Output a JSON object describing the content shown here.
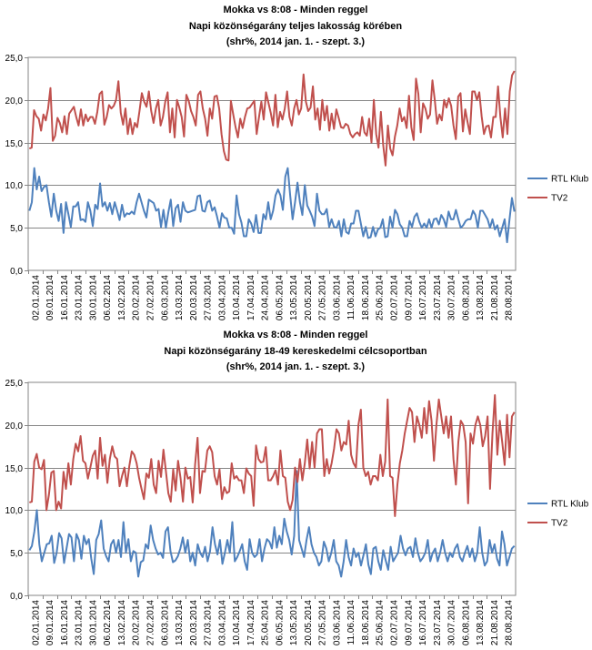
{
  "chart_data": [
    {
      "type": "line",
      "title": [
        "Mokka vs 8:08 - Minden reggel",
        "Napi közönségarány teljes lakosság körében",
        "(shr%, 2014 jan. 1. - szept. 3.)"
      ],
      "ylim": [
        0,
        25
      ],
      "yticks": [
        "0,0",
        "5,0",
        "10,0",
        "15,0",
        "20,0",
        "25,0"
      ],
      "grid": true,
      "legend_position": "right",
      "xticks": [
        "02.01.2014",
        "09.01.2014",
        "16.01.2014",
        "23.01.2014",
        "30.01.2014",
        "06.02.2014",
        "13.02.2014",
        "20.02.2014",
        "27.02.2014",
        "06.03.2014",
        "13.03.2014",
        "20.03.2014",
        "27.03.2014",
        "03.04.2014",
        "10.04.2014",
        "17.04.2014",
        "24.04.2014",
        "06.05.2014",
        "13.05.2014",
        "20.05.2014",
        "27.05.2014",
        "03.06.2014",
        "11.06.2014",
        "18.06.2014",
        "25.06.2014",
        "02.07.2014",
        "09.07.2014",
        "16.07.2014",
        "23.07.2014",
        "30.07.2014",
        "06.08.2014",
        "13.08.2014",
        "21.08.2014",
        "28.08.2014"
      ],
      "series": [
        {
          "name": "RTL Klub",
          "color": "#4f81bd",
          "values": [
            7.0,
            8.0,
            12.0,
            9.5,
            11.0,
            9.3,
            9.8,
            10.0,
            8.0,
            6.3,
            9.0,
            7.0,
            5.8,
            7.8,
            4.4,
            8.0,
            6.6,
            5.1,
            7.5,
            7.5,
            8.0,
            5.9,
            6.0,
            5.7,
            8.0,
            7.0,
            5.2,
            7.7,
            7.2,
            10.2,
            7.5,
            8.0,
            7.0,
            7.9,
            6.6,
            8.0,
            7.0,
            5.9,
            7.7,
            6.3,
            6.7,
            6.6,
            6.9,
            6.6,
            8.0,
            9.0,
            8.0,
            7.0,
            6.2,
            8.3,
            8.1,
            7.9,
            7.0,
            7.2,
            5.1,
            7.1,
            5.0,
            6.8,
            8.3,
            5.2,
            7.3,
            7.7,
            5.7,
            8.0,
            7.0,
            6.8,
            6.9,
            7.0,
            7.1,
            8.7,
            8.8,
            7.0,
            6.9,
            8.0,
            8.2,
            7.0,
            7.4,
            6.3,
            5.0,
            6.7,
            6.2,
            6.1,
            5.0,
            5.0,
            4.3,
            8.8,
            6.6,
            5.6,
            4.0,
            4.0,
            6.0,
            5.5,
            4.5,
            6.5,
            4.4,
            4.4,
            6.6,
            6.0,
            8.0,
            6.0,
            7.0,
            8.8,
            9.5,
            8.8,
            7.1,
            11.0,
            12.0,
            8.8,
            6.0,
            8.0,
            10.3,
            8.0,
            6.5,
            10.0,
            7.6,
            7.0,
            6.3,
            5.2,
            9.0,
            7.0,
            6.6,
            6.6,
            7.2,
            5.1,
            6.0,
            5.1,
            5.0,
            5.8,
            4.0,
            6.0,
            4.5,
            4.3,
            5.5,
            5.5,
            7.0,
            7.0,
            5.5,
            4.0,
            5.1,
            3.8,
            3.9,
            5.1,
            4.0,
            4.8,
            5.0,
            6.0,
            3.9,
            4.0,
            6.3,
            5.0,
            7.1,
            6.6,
            5.4,
            5.0,
            4.0,
            4.0,
            5.8,
            5.1,
            6.3,
            6.7,
            5.7,
            5.0,
            5.5,
            5.0,
            6.0,
            5.0,
            6.0,
            6.1,
            5.4,
            6.5,
            6.0,
            5.1,
            6.9,
            6.0,
            6.0,
            7.1,
            6.0,
            5.0,
            5.3,
            5.8,
            6.0,
            6.0,
            7.0,
            6.5,
            5.0,
            7.0,
            7.0,
            6.5,
            6.0,
            5.0,
            6.0,
            4.8,
            5.3,
            4.0,
            5.0,
            6.0,
            3.3,
            6.0,
            8.5,
            6.9
          ]
        },
        {
          "name": "TV2",
          "color": "#c0504d",
          "values": [
            14.3,
            14.4,
            18.8,
            18.1,
            17.8,
            16.4,
            18.3,
            17.6,
            19.0,
            21.4,
            15.2,
            15.8,
            17.9,
            17.3,
            16.2,
            18.1,
            16.0,
            18.4,
            18.8,
            19.2,
            18.0,
            17.0,
            18.9,
            17.0,
            18.3,
            17.5,
            18.0,
            18.0,
            17.2,
            18.6,
            20.7,
            21.0,
            17.1,
            18.0,
            19.4,
            19.0,
            19.3,
            20.0,
            22.2,
            18.5,
            17.1,
            19.0,
            16.0,
            17.8,
            16.0,
            17.3,
            16.8,
            18.7,
            20.8,
            19.8,
            19.2,
            21.0,
            18.7,
            17.3,
            19.0,
            20.0,
            17.0,
            18.0,
            19.8,
            20.9,
            16.2,
            19.0,
            15.6,
            20.0,
            19.1,
            18.0,
            15.7,
            20.6,
            19.9,
            18.7,
            18.0,
            17.0,
            20.6,
            21.0,
            19.0,
            17.8,
            15.8,
            19.0,
            17.8,
            20.4,
            20.5,
            19.0,
            16.0,
            14.0,
            13.0,
            12.9,
            19.9,
            18.3,
            16.8,
            15.6,
            17.8,
            16.7,
            18.0,
            19.0,
            19.1,
            19.5,
            19.9,
            16.0,
            18.0,
            19.8,
            17.7,
            20.9,
            19.7,
            18.5,
            17.0,
            20.6,
            16.8,
            18.6,
            17.7,
            19.0,
            21.0,
            18.0,
            17.0,
            19.0,
            20.0,
            18.3,
            19.0,
            23.0,
            19.8,
            18.7,
            19.1,
            21.6,
            17.7,
            19.0,
            16.5,
            20.0,
            17.6,
            19.3,
            16.4,
            18.4,
            16.6,
            18.9,
            17.9,
            16.8,
            16.7,
            17.2,
            17.0,
            16.0,
            15.6,
            16.0,
            16.2,
            15.8,
            18.0,
            16.2,
            15.8,
            17.8,
            15.0,
            20.0,
            16.0,
            14.4,
            18.6,
            14.7,
            12.3,
            17.0,
            14.3,
            13.5,
            15.7,
            17.0,
            19.0,
            17.5,
            18.0,
            16.7,
            20.5,
            16.8,
            15.3,
            22.5,
            20.7,
            16.2,
            19.6,
            19.0,
            17.8,
            18.3,
            22.3,
            20.0,
            17.2,
            18.3,
            17.6,
            20.0,
            19.1,
            20.2,
            19.3,
            17.0,
            15.4,
            20.4,
            20.8,
            16.3,
            18.9,
            17.4,
            16.0,
            21.0,
            21.0,
            20.0,
            20.9,
            18.1,
            16.0,
            16.9,
            17.0,
            15.6,
            18.0,
            18.0,
            21.6,
            18.0,
            15.6,
            19.0,
            16.0,
            21.0,
            22.9,
            23.4
          ]
        }
      ]
    },
    {
      "type": "line",
      "title": [
        "Mokka vs 8:08 - Minden reggel",
        "Napi közönségarány 18-49 kereskedelmi célcsoportban",
        "(shr%, 2014 jan. 1. - szept. 3.)"
      ],
      "ylim": [
        0,
        25
      ],
      "yticks": [
        "0,0",
        "5,0",
        "10,0",
        "15,0",
        "20,0",
        "25,0"
      ],
      "grid": true,
      "legend_position": "right",
      "xticks": [
        "02.01.2014",
        "09.01.2014",
        "16.01.2014",
        "23.01.2014",
        "30.01.2014",
        "06.02.2014",
        "13.02.2014",
        "20.02.2014",
        "27.02.2014",
        "06.03.2014",
        "13.03.2014",
        "20.03.2014",
        "27.03.2014",
        "03.04.2014",
        "10.04.2014",
        "17.04.2014",
        "25.04.2014",
        "06.05.2014",
        "13.05.2014",
        "20.05.2014",
        "27.05.2014",
        "03.06.2014",
        "11.06.2014",
        "18.06.2014",
        "25.06.2014",
        "02.07.2014",
        "09.07.2014",
        "16.07.2014",
        "23.07.2014",
        "30.07.2014",
        "06.08.2014",
        "13.08.2014",
        "21.08.2014",
        "28.08.2014"
      ],
      "series": [
        {
          "name": "RTL Klub",
          "color": "#4f81bd",
          "values": [
            5.3,
            5.8,
            7.5,
            10.0,
            6.0,
            4.0,
            5.0,
            6.0,
            6.1,
            7.0,
            3.8,
            5.0,
            7.3,
            6.7,
            3.8,
            5.5,
            7.2,
            6.8,
            4.0,
            7.2,
            6.5,
            4.3,
            7.0,
            6.0,
            6.6,
            4.3,
            2.5,
            6.5,
            7.2,
            8.8,
            5.5,
            4.6,
            4.0,
            6.0,
            6.5,
            5.0,
            6.5,
            4.5,
            8.6,
            5.0,
            6.6,
            4.0,
            5.2,
            5.0,
            2.2,
            3.9,
            4.1,
            6.0,
            5.5,
            8.2,
            6.5,
            5.5,
            4.8,
            5.0,
            4.4,
            7.5,
            8.0,
            5.2,
            3.9,
            4.1,
            4.6,
            5.5,
            6.8,
            5.0,
            6.5,
            4.0,
            5.0,
            3.5,
            6.0,
            5.0,
            4.5,
            5.7,
            4.0,
            5.2,
            8.0,
            6.0,
            4.8,
            6.5,
            3.7,
            5.0,
            6.5,
            5.0,
            8.6,
            4.0,
            4.5,
            5.2,
            6.0,
            4.0,
            3.0,
            6.6,
            5.0,
            4.5,
            4.8,
            6.6,
            4.0,
            5.5,
            6.6,
            6.3,
            5.5,
            8.0,
            5.6,
            7.0,
            6.0,
            9.0,
            7.5,
            6.5,
            4.8,
            7.0,
            14.6,
            6.5,
            5.5,
            4.5,
            6.5,
            8.0,
            6.0,
            5.0,
            4.5,
            3.5,
            4.0,
            6.3,
            5.5,
            4.0,
            5.0,
            6.5,
            4.0,
            3.5,
            2.2,
            4.0,
            6.5,
            4.5,
            3.5,
            5.5,
            4.5,
            5.0,
            3.5,
            4.7,
            6.0,
            3.6,
            2.5,
            5.5,
            5.7,
            4.0,
            3.0,
            5.3,
            4.1,
            3.0,
            5.7,
            4.0,
            4.5,
            5.0,
            7.0,
            5.5,
            4.7,
            5.5,
            5.7,
            4.5,
            6.7,
            5.0,
            4.0,
            4.4,
            5.0,
            6.5,
            4.0,
            5.0,
            5.5,
            4.0,
            5.0,
            6.5,
            5.0,
            4.0,
            5.0,
            4.5,
            5.5,
            6.0,
            4.5,
            4.0,
            5.0,
            5.8,
            4.5,
            5.5,
            4.0,
            5.0,
            8.0,
            5.0,
            3.5,
            4.0,
            6.5,
            5.0,
            6.0,
            4.3,
            3.5,
            7.5,
            6.0,
            3.5,
            4.5,
            5.5,
            5.8
          ]
        },
        {
          "name": "TV2",
          "color": "#c0504d",
          "values": [
            10.9,
            11.0,
            15.7,
            16.6,
            15.0,
            14.8,
            15.9,
            10.0,
            11.8,
            14.4,
            14.6,
            10.0,
            11.0,
            10.2,
            14.5,
            12.5,
            15.5,
            13.0,
            16.0,
            17.8,
            16.9,
            18.7,
            15.8,
            15.5,
            13.7,
            15.0,
            16.4,
            17.0,
            13.7,
            18.5,
            15.2,
            16.5,
            13.2,
            16.0,
            17.5,
            16.3,
            16.0,
            12.8,
            14.0,
            15.0,
            12.8,
            15.2,
            16.9,
            16.5,
            15.5,
            13.8,
            12.5,
            11.3,
            14.3,
            13.8,
            16.0,
            13.0,
            12.0,
            15.8,
            13.9,
            17.1,
            14.6,
            12.0,
            11.0,
            14.8,
            12.3,
            15.8,
            13.8,
            11.0,
            15.0,
            13.7,
            13.9,
            10.9,
            15.4,
            18.5,
            12.0,
            14.6,
            14.5,
            17.0,
            17.5,
            16.8,
            14.0,
            13.0,
            14.8,
            11.3,
            12.7,
            12.0,
            12.2,
            15.5,
            13.7,
            14.0,
            13.5,
            13.5,
            12.0,
            14.9,
            14.3,
            14.0,
            10.5,
            17.6,
            16.0,
            15.6,
            15.7,
            17.4,
            13.5,
            13.5,
            14.0,
            14.7,
            13.0,
            17.0,
            14.0,
            13.8,
            11.0,
            10.0,
            11.2,
            15.0,
            13.3,
            16.0,
            13.5,
            15.5,
            18.3,
            14.9,
            18.0,
            15.0,
            19.0,
            19.5,
            19.5,
            14.0,
            16.0,
            14.3,
            15.5,
            17.2,
            19.5,
            19.0,
            17.0,
            18.0,
            17.7,
            20.5,
            16.5,
            15.5,
            15.0,
            20.0,
            21.8,
            15.0,
            14.0,
            14.5,
            13.0,
            14.0,
            14.0,
            13.5,
            16.5,
            14.0,
            15.7,
            23.0,
            14.0,
            13.8,
            9.3,
            13.0,
            15.5,
            17.0,
            19.0,
            20.5,
            22.0,
            21.5,
            18.0,
            21.0,
            20.0,
            18.5,
            22.0,
            19.0,
            22.8,
            20.5,
            15.8,
            20.0,
            23.0,
            21.0,
            19.0,
            21.0,
            18.5,
            21.0,
            16.0,
            13.0,
            18.0,
            20.5,
            20.0,
            18.0,
            10.8,
            19.0,
            17.8,
            20.0,
            21.0,
            20.0,
            17.5,
            18.7,
            21.0,
            12.5,
            19.0,
            23.5,
            16.5,
            20.5,
            18.0,
            15.3,
            21.2,
            16.2,
            21.0,
            21.5
          ]
        }
      ]
    }
  ]
}
